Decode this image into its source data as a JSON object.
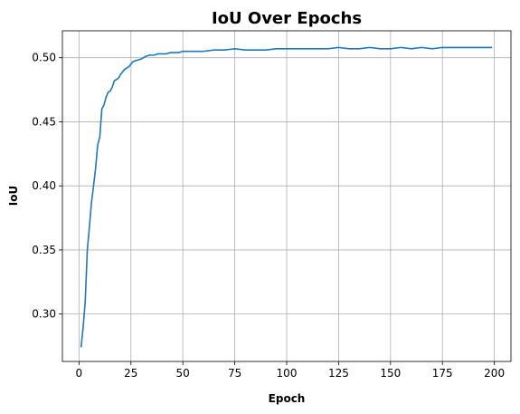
{
  "chart_data": {
    "type": "line",
    "title": "IoU Over Epochs",
    "xlabel": "Epoch",
    "ylabel": "IoU",
    "xlim": [
      -8,
      208
    ],
    "ylim": [
      0.263,
      0.521
    ],
    "xticks": [
      0,
      25,
      50,
      75,
      100,
      125,
      150,
      175,
      200
    ],
    "yticks": [
      0.3,
      0.35,
      0.4,
      0.45,
      0.5
    ],
    "ytick_labels": [
      "0.30",
      "0.35",
      "0.40",
      "0.45",
      "0.50"
    ],
    "grid": true,
    "series": [
      {
        "color": "#1f77b4",
        "x": [
          1,
          2,
          3,
          4,
          5,
          6,
          7,
          8,
          9,
          10,
          11,
          12,
          13,
          14,
          15,
          16,
          17,
          18,
          19,
          20,
          22,
          24,
          26,
          28,
          30,
          32,
          34,
          36,
          38,
          40,
          42,
          44,
          46,
          48,
          50,
          55,
          60,
          65,
          70,
          75,
          80,
          85,
          90,
          95,
          100,
          105,
          110,
          115,
          120,
          125,
          130,
          135,
          140,
          145,
          150,
          155,
          160,
          165,
          170,
          175,
          180,
          185,
          190,
          195,
          199
        ],
        "y": [
          0.274,
          0.29,
          0.31,
          0.35,
          0.368,
          0.387,
          0.4,
          0.414,
          0.432,
          0.438,
          0.46,
          0.463,
          0.469,
          0.473,
          0.474,
          0.477,
          0.482,
          0.483,
          0.484,
          0.487,
          0.491,
          0.493,
          0.497,
          0.498,
          0.499,
          0.501,
          0.502,
          0.502,
          0.503,
          0.503,
          0.503,
          0.504,
          0.504,
          0.504,
          0.505,
          0.505,
          0.505,
          0.506,
          0.506,
          0.507,
          0.506,
          0.506,
          0.506,
          0.507,
          0.507,
          0.507,
          0.507,
          0.507,
          0.507,
          0.508,
          0.507,
          0.507,
          0.508,
          0.507,
          0.507,
          0.508,
          0.507,
          0.508,
          0.507,
          0.508,
          0.508,
          0.508,
          0.508,
          0.508,
          0.508
        ]
      }
    ]
  }
}
